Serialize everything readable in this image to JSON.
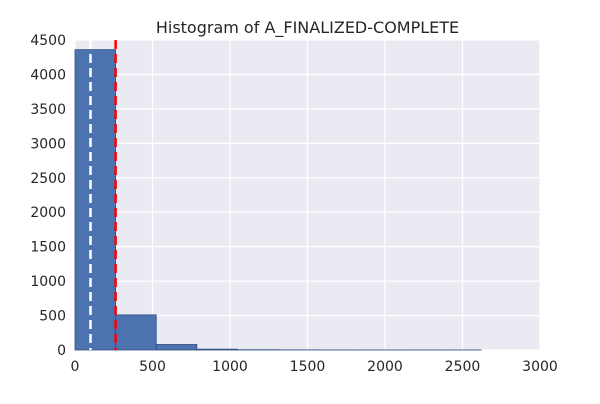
{
  "chart_data": {
    "type": "bar",
    "title": "Histogram of A_FINALIZED-COMPLETE",
    "xlabel": "",
    "ylabel": "",
    "xlim": [
      0,
      3000
    ],
    "ylim": [
      0,
      4500
    ],
    "x_ticks": [
      0,
      500,
      1000,
      1500,
      2000,
      2500,
      3000
    ],
    "y_ticks": [
      0,
      500,
      1000,
      1500,
      2000,
      2500,
      3000,
      3500,
      4000,
      4500
    ],
    "grid": true,
    "bins": [
      {
        "x0": 0,
        "x1": 262,
        "count": 4360
      },
      {
        "x0": 262,
        "x1": 524,
        "count": 510
      },
      {
        "x0": 524,
        "x1": 786,
        "count": 80
      },
      {
        "x0": 786,
        "x1": 1048,
        "count": 12
      },
      {
        "x0": 1048,
        "x1": 1310,
        "count": 4
      },
      {
        "x0": 1310,
        "x1": 1572,
        "count": 2
      },
      {
        "x0": 1572,
        "x1": 1834,
        "count": 1
      },
      {
        "x0": 1834,
        "x1": 2096,
        "count": 1
      },
      {
        "x0": 2096,
        "x1": 2358,
        "count": 1
      },
      {
        "x0": 2358,
        "x1": 2620,
        "count": 1
      }
    ],
    "reference_lines": [
      {
        "x": 100,
        "color": "#ffffff",
        "style": "dashed"
      },
      {
        "x": 262,
        "color": "#ff0000",
        "style": "dashed"
      }
    ],
    "colors": {
      "bar_fill": "#4c72b0",
      "bar_edge": "#2f4f80",
      "plot_background": "#eaeaf2",
      "grid": "#ffffff",
      "text": "#262626"
    }
  }
}
